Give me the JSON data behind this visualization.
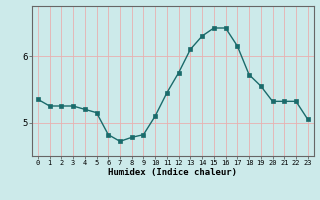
{
  "x": [
    0,
    1,
    2,
    3,
    4,
    5,
    6,
    7,
    8,
    9,
    10,
    11,
    12,
    13,
    14,
    15,
    16,
    17,
    18,
    19,
    20,
    21,
    22,
    23
  ],
  "y": [
    5.35,
    5.25,
    5.25,
    5.25,
    5.2,
    5.15,
    4.82,
    4.72,
    4.78,
    4.82,
    5.1,
    5.45,
    5.75,
    6.1,
    6.3,
    6.42,
    6.42,
    6.15,
    5.72,
    5.55,
    5.32,
    5.32,
    5.32,
    5.05
  ],
  "xlabel": "Humidex (Indice chaleur)",
  "xlim": [
    -0.5,
    23.5
  ],
  "ylim": [
    4.5,
    6.75
  ],
  "yticks": [
    5,
    6
  ],
  "xticks": [
    0,
    1,
    2,
    3,
    4,
    5,
    6,
    7,
    8,
    9,
    10,
    11,
    12,
    13,
    14,
    15,
    16,
    17,
    18,
    19,
    20,
    21,
    22,
    23
  ],
  "line_color": "#1a6b6b",
  "marker_color": "#1a6b6b",
  "bg_color": "#cceaea",
  "grid_color": "#e8b0b0",
  "spine_color": "#666666"
}
